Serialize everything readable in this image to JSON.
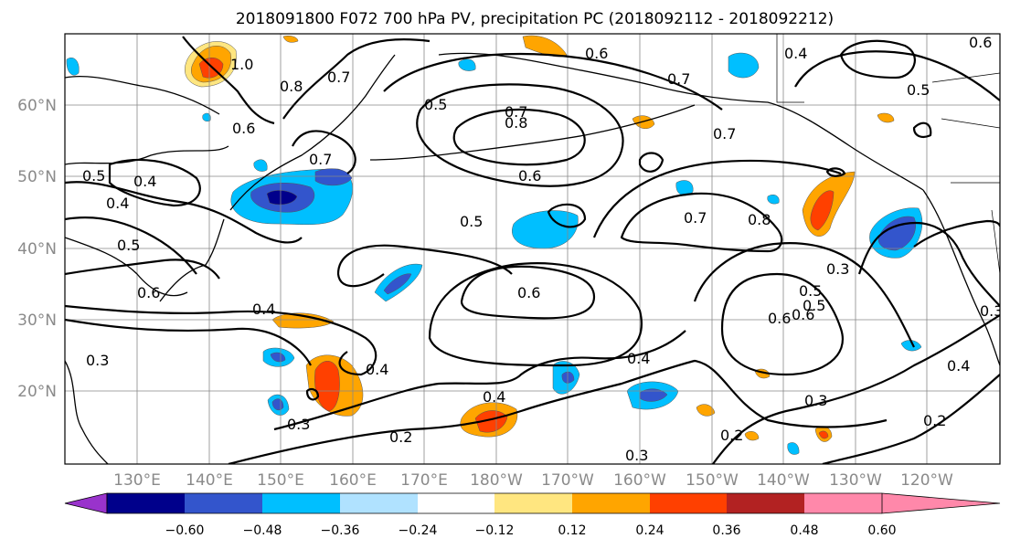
{
  "title": "2018091800 F072 700 hPa PV, precipitation PC (2018092112 - 2018092212)",
  "lat_labels": [
    "60°N",
    "50°N",
    "40°N",
    "30°N",
    "20°N"
  ],
  "lon_labels": [
    "130°E",
    "140°E",
    "150°E",
    "160°E",
    "170°E",
    "180°W",
    "170°W",
    "160°W",
    "150°W",
    "140°W",
    "130°W",
    "120°W"
  ],
  "contour_labels": [
    "1.0",
    "0.8",
    "0.7",
    "0.6",
    "0.5",
    "0.7",
    "0.8",
    "0.6",
    "0.7",
    "0.4",
    "0.5",
    "0.6",
    "0.4",
    "0.6",
    "0.5",
    "0.7",
    "0.8",
    "0.7",
    "0.5",
    "0.4",
    "0.5",
    "0.6",
    "0.4",
    "0.3",
    "0.5",
    "0.6",
    "0.4",
    "0.3",
    "0.2",
    "0.3",
    "0.2",
    "0.3",
    "0.2",
    "0.4",
    "0.3",
    "0.4",
    "0.3",
    "0.4",
    "0.5",
    "0.6",
    "0.6",
    "0.7"
  ],
  "colorbar": {
    "tick_labels": [
      "−0.60",
      "−0.48",
      "−0.36",
      "−0.24",
      "−0.12",
      "0.12",
      "0.24",
      "0.36",
      "0.48",
      "0.60"
    ],
    "colors": [
      "#9933cc",
      "#00008b",
      "#3355cc",
      "#00bfff",
      "#b0e2ff",
      "#ffffff",
      "#ffe680",
      "#ffa500",
      "#ff4000",
      "#b22222",
      "#ff88aa"
    ]
  }
}
